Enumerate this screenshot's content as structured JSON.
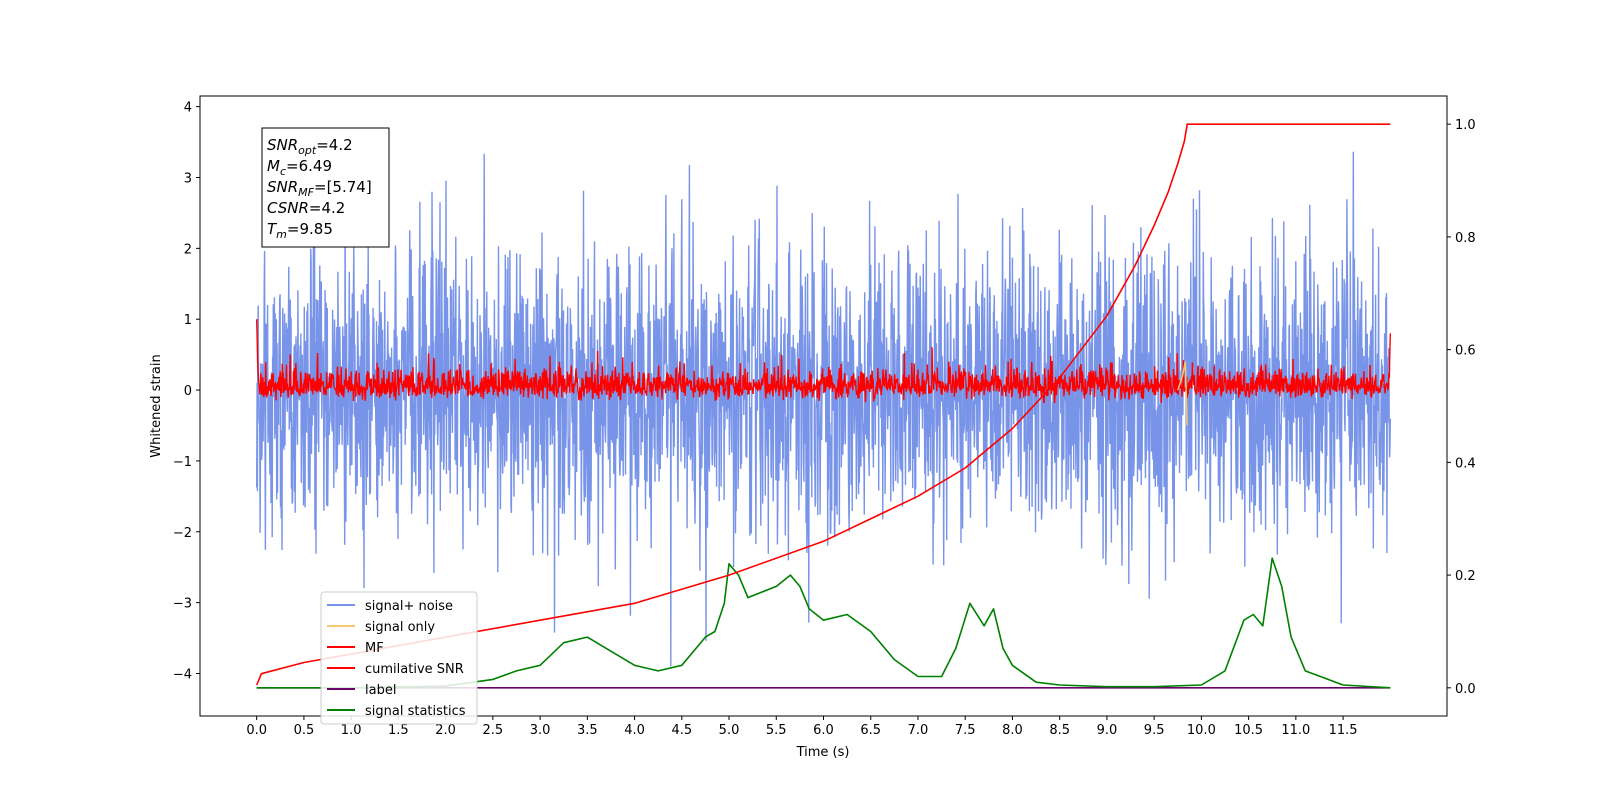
{
  "chart_data": {
    "type": "line",
    "xlabel": "Time (s)",
    "ylabel": "Whitened strain",
    "xlim": [
      -0.6,
      12.6
    ],
    "ylim": [
      -4.6,
      4.15
    ],
    "y2lim": [
      -0.05,
      1.05
    ],
    "x_ticks": [
      "0.0",
      "0.5",
      "1.0",
      "1.5",
      "2.0",
      "2.5",
      "3.0",
      "3.5",
      "4.0",
      "4.5",
      "5.0",
      "5.5",
      "6.0",
      "6.5",
      "7.0",
      "7.5",
      "8.0",
      "8.5",
      "9.0",
      "9.5",
      "10.0",
      "10.5",
      "11.0",
      "11.5"
    ],
    "y_ticks": [
      "4",
      "3",
      "2",
      "1",
      "0",
      "−1",
      "−2",
      "−3",
      "−4"
    ],
    "y2_ticks": [
      "1.0",
      "0.8",
      "0.6",
      "0.4",
      "0.2",
      "0.0"
    ],
    "grid": false,
    "legend_position": "lower-left",
    "series": [
      {
        "name": "signal+ noise",
        "color": "#7894e8",
        "axis": "left",
        "x_range": [
          0.0,
          12.0
        ],
        "band": [
          -2.0,
          2.0
        ]
      },
      {
        "name": "signal only",
        "color": "#f5c96b",
        "axis": "left",
        "x": [
          9.75,
          9.8,
          9.83,
          9.85
        ],
        "y": [
          0.0,
          0.2,
          0.4,
          -0.5
        ]
      },
      {
        "name": "MF",
        "color": "#ff0000",
        "axis": "left",
        "x_range": [
          0.0,
          12.0
        ],
        "band": [
          -0.25,
          0.5
        ]
      },
      {
        "name": "cumilative SNR",
        "color": "#ff0000",
        "axis": "right",
        "x": [
          0.0,
          0.05,
          0.5,
          1.0,
          2.0,
          3.0,
          4.0,
          5.0,
          6.0,
          7.0,
          7.5,
          8.0,
          8.5,
          9.0,
          9.3,
          9.5,
          9.65,
          9.75,
          9.82,
          9.85,
          12.0
        ],
        "y": [
          0.005,
          0.025,
          0.045,
          0.06,
          0.09,
          0.12,
          0.15,
          0.2,
          0.26,
          0.34,
          0.39,
          0.46,
          0.55,
          0.66,
          0.75,
          0.82,
          0.88,
          0.93,
          0.97,
          1.0,
          1.0
        ]
      },
      {
        "name": "label",
        "color": "#6a006a",
        "axis": "right",
        "x": [
          0.0,
          12.0
        ],
        "y": [
          0.0,
          0.0
        ]
      },
      {
        "name": "signal statistics",
        "color": "#008000",
        "axis": "right",
        "x": [
          0.0,
          1.0,
          2.0,
          2.5,
          2.75,
          3.0,
          3.25,
          3.5,
          3.75,
          4.0,
          4.25,
          4.5,
          4.75,
          4.85,
          4.95,
          5.0,
          5.1,
          5.2,
          5.35,
          5.5,
          5.65,
          5.75,
          5.85,
          6.0,
          6.25,
          6.5,
          6.75,
          7.0,
          7.25,
          7.4,
          7.55,
          7.7,
          7.8,
          7.9,
          8.0,
          8.25,
          8.5,
          9.0,
          9.5,
          10.0,
          10.25,
          10.45,
          10.55,
          10.65,
          10.75,
          10.85,
          10.95,
          11.1,
          11.5,
          12.0
        ],
        "y": [
          0.0,
          0.0,
          0.003,
          0.015,
          0.03,
          0.04,
          0.08,
          0.09,
          0.065,
          0.04,
          0.03,
          0.04,
          0.09,
          0.1,
          0.15,
          0.22,
          0.2,
          0.16,
          0.17,
          0.18,
          0.2,
          0.18,
          0.14,
          0.12,
          0.13,
          0.1,
          0.05,
          0.02,
          0.02,
          0.07,
          0.15,
          0.11,
          0.14,
          0.07,
          0.04,
          0.01,
          0.005,
          0.002,
          0.002,
          0.005,
          0.03,
          0.12,
          0.13,
          0.11,
          0.23,
          0.18,
          0.09,
          0.03,
          0.005,
          0.0
        ]
      }
    ],
    "annotation": [
      {
        "base": "SNR",
        "sub": "opt",
        "value": "=4.2"
      },
      {
        "base": "M",
        "sub": "c",
        "value": "=6.49"
      },
      {
        "base": "SNR",
        "sub": "MF",
        "value": "=[5.74]"
      },
      {
        "base": "CSNR",
        "sub": "",
        "value": "=4.2"
      },
      {
        "base": "T",
        "sub": "m",
        "value": "=9.85"
      }
    ]
  }
}
